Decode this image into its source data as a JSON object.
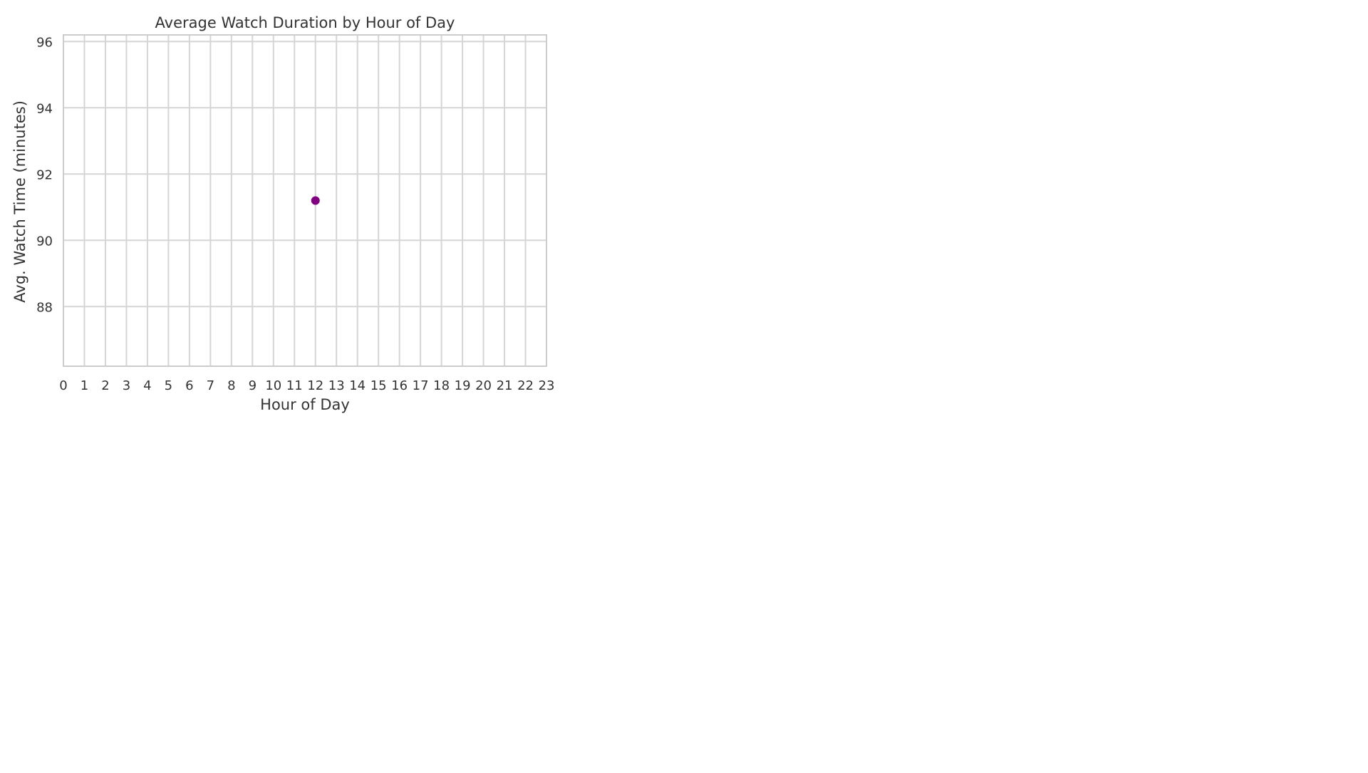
{
  "chart_data": {
    "type": "scatter",
    "title": "Average Watch Duration by Hour of Day",
    "xlabel": "Hour of Day",
    "ylabel": "Avg. Watch Time (minutes)",
    "xlim": [
      0,
      23
    ],
    "ylim": [
      86.2,
      96.2
    ],
    "xticks": [
      "0",
      "1",
      "2",
      "3",
      "4",
      "5",
      "6",
      "7",
      "8",
      "9",
      "10",
      "11",
      "12",
      "13",
      "14",
      "15",
      "16",
      "17",
      "18",
      "19",
      "20",
      "21",
      "22",
      "23"
    ],
    "yticks": [
      "88",
      "90",
      "92",
      "94",
      "96"
    ],
    "grid": true,
    "legend": "none",
    "series": [
      {
        "color": "#800080",
        "points": [
          {
            "x": 12,
            "y": 91.2
          }
        ]
      }
    ]
  }
}
